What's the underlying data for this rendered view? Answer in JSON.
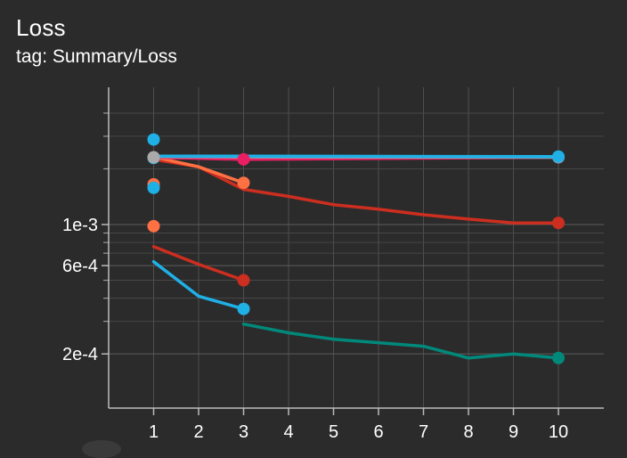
{
  "card": {
    "title": "Loss",
    "subtitle": "tag: Summary/Loss"
  },
  "chart_data": {
    "type": "line",
    "title": "Loss",
    "subtitle": "tag: Summary/Loss",
    "xlabel": "",
    "ylabel": "",
    "xlim": [
      0,
      11
    ],
    "ylim": [
      0.00014,
      0.0041
    ],
    "yscale": "log",
    "grid": true,
    "x_ticks": [
      1,
      2,
      3,
      4,
      5,
      6,
      7,
      8,
      9,
      10
    ],
    "x_tick_labels": [
      "1",
      "2",
      "3",
      "4",
      "5",
      "6",
      "7",
      "8",
      "9",
      "10"
    ],
    "y_tick_labels": [
      {
        "value": 0.001,
        "label": "1e-3"
      },
      {
        "value": 0.0006,
        "label": "6e-4"
      },
      {
        "value": 0.0002,
        "label": "2e-4"
      }
    ],
    "y_minor_ticks": [
      0.0003,
      0.0004,
      0.0005,
      0.0007,
      0.0008,
      0.0009,
      0.002,
      0.003,
      0.004
    ],
    "series": [
      {
        "color": "#cc2e1f",
        "x": [
          1,
          2,
          3,
          4,
          5,
          6,
          7,
          8,
          9,
          10
        ],
        "y": [
          0.00225,
          0.00205,
          0.00155,
          0.00142,
          0.00128,
          0.00121,
          0.00113,
          0.00107,
          0.00102,
          0.00102
        ],
        "markers": [
          {
            "x": 10,
            "color": "#cc2e1f"
          }
        ]
      },
      {
        "color": "#ff7043",
        "x": [
          1,
          2,
          3
        ],
        "y": [
          0.00232,
          0.00205,
          0.00168
        ],
        "markers": [
          {
            "x": 3,
            "color": "#ff7043"
          }
        ]
      },
      {
        "color": "#cc2e1f",
        "x": [
          1,
          2,
          3
        ],
        "y": [
          0.00076,
          0.00061,
          0.0005
        ],
        "markers": [
          {
            "x": 3,
            "color": "#cc2e1f"
          }
        ]
      },
      {
        "color": "#1fb0e6",
        "x": [
          1,
          2,
          3
        ],
        "y": [
          0.00063,
          0.00041,
          0.00035
        ],
        "markers": [
          {
            "x": 3,
            "color": "#1fb0e6"
          }
        ]
      },
      {
        "color": "#00897b",
        "x": [
          3,
          4,
          5,
          6,
          7,
          8,
          9,
          10
        ],
        "y": [
          0.00029,
          0.00026,
          0.00024,
          0.00023,
          0.00022,
          0.00019,
          0.0002,
          0.00019
        ],
        "markers": [
          {
            "x": 10,
            "color": "#00897b"
          }
        ]
      },
      {
        "color": "#e91e63",
        "x": [
          1,
          3,
          10
        ],
        "y": [
          0.00231,
          0.00225,
          0.00231
        ],
        "markers": [
          {
            "x": 3,
            "color": "#e91e63"
          },
          {
            "x": 10,
            "color": "#e91e63"
          }
        ]
      },
      {
        "color": "#9aa0a6",
        "x": [
          1,
          3,
          10
        ],
        "y": [
          0.00233,
          0.00232,
          0.00231
        ],
        "markers": [
          {
            "x": 10,
            "color": "#9aa0a6"
          }
        ]
      },
      {
        "color": "#1fb0e6",
        "x": [
          1,
          3,
          10
        ],
        "y": [
          0.00234,
          0.00234,
          0.00233
        ],
        "markers": [
          {
            "x": 10,
            "color": "#1fb0e6"
          }
        ]
      }
    ],
    "points": [
      {
        "x": 1,
        "y": 0.00288,
        "color": "#1fb0e6"
      },
      {
        "x": 1,
        "y": 0.00229,
        "color": "#1fb0e6"
      },
      {
        "x": 1,
        "y": 0.00231,
        "color": "#aaaaaa"
      },
      {
        "x": 1,
        "y": 0.00165,
        "color": "#ff7043"
      },
      {
        "x": 1,
        "y": 0.00158,
        "color": "#1fb0e6"
      },
      {
        "x": 1,
        "y": 0.00098,
        "color": "#ff7043"
      }
    ]
  }
}
